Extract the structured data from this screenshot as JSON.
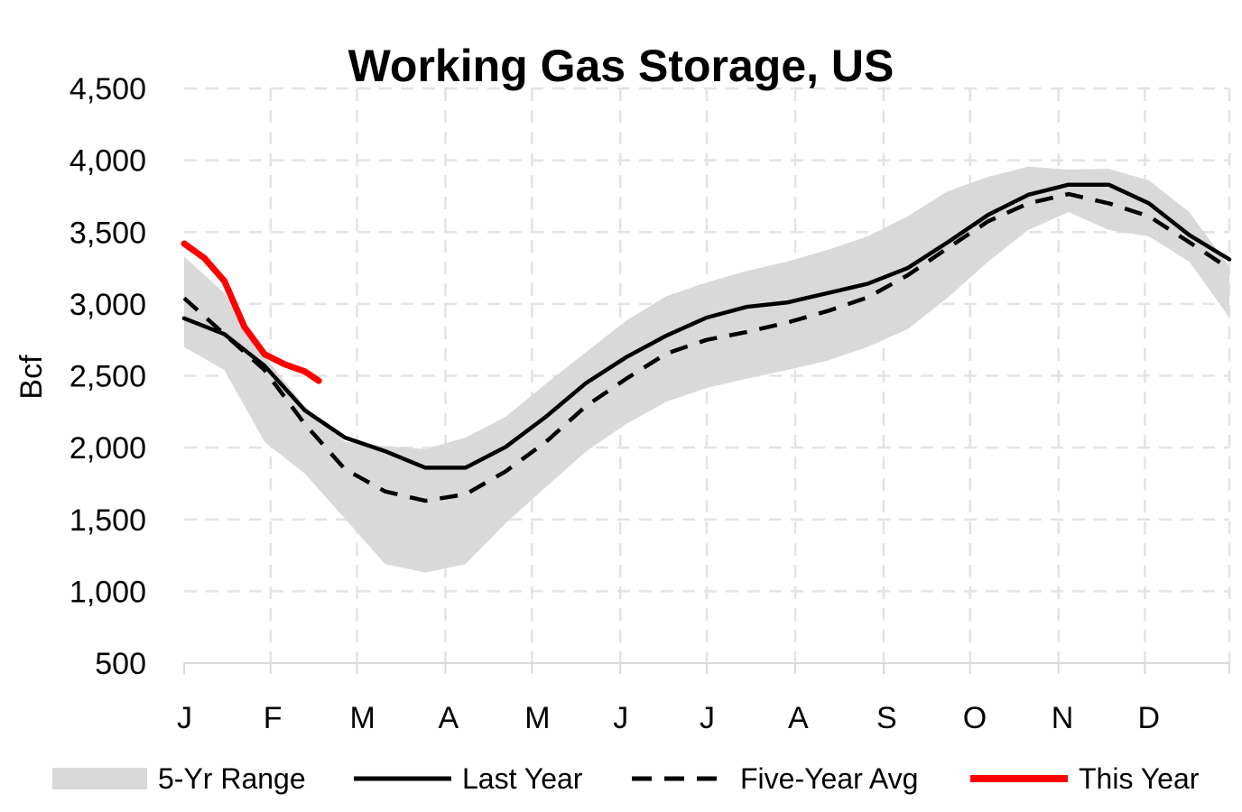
{
  "chart_data": {
    "type": "line",
    "title": "Working Gas Storage, US",
    "ylabel": "Bcf",
    "xlabel": "",
    "ylim": [
      500,
      4500
    ],
    "yticks": [
      "500",
      "1,000",
      "1,500",
      "2,000",
      "2,500",
      "3,000",
      "3,500",
      "4,000",
      "4,500"
    ],
    "ytick_values": [
      500,
      1000,
      1500,
      2000,
      2500,
      3000,
      3500,
      4000,
      4500
    ],
    "x_unit": "week of year",
    "xlim": [
      1,
      53
    ],
    "xtick_labels": [
      "J",
      "F",
      "M",
      "A",
      "M",
      "J",
      "J",
      "A",
      "S",
      "O",
      "N",
      "D"
    ],
    "xtick_weeks": [
      1,
      5.3,
      9.6,
      14,
      18.3,
      22.7,
      27,
      31.4,
      35.8,
      40.1,
      44.5,
      48.8,
      53
    ],
    "grid": true,
    "legend_position": "bottom",
    "x": [
      1,
      3,
      5,
      7,
      9,
      11,
      13,
      15,
      17,
      19,
      21,
      23,
      25,
      27,
      29,
      31,
      33,
      35,
      37,
      39,
      41,
      43,
      45,
      47,
      49,
      51,
      53
    ],
    "series": [
      {
        "name": "5-Yr Range",
        "kind": "band",
        "color": "#d9d9d9",
        "upper": [
          3330,
          3075,
          2635,
          2290,
          2040,
          2010,
          1990,
          2070,
          2215,
          2445,
          2665,
          2885,
          3055,
          3150,
          3230,
          3295,
          3375,
          3470,
          3610,
          3785,
          3885,
          3955,
          3935,
          3940,
          3860,
          3640,
          3260
        ],
        "lower": [
          2700,
          2540,
          2040,
          1820,
          1505,
          1190,
          1130,
          1190,
          1475,
          1725,
          1975,
          2165,
          2320,
          2415,
          2480,
          2540,
          2605,
          2700,
          2825,
          3045,
          3295,
          3515,
          3640,
          3515,
          3470,
          3295,
          2905
        ]
      },
      {
        "name": "Last Year",
        "kind": "solid",
        "color": "#000000",
        "values": [
          2900,
          2790,
          2570,
          2260,
          2070,
          1975,
          1860,
          1860,
          2005,
          2215,
          2450,
          2630,
          2780,
          2905,
          2980,
          3010,
          3075,
          3140,
          3250,
          3430,
          3620,
          3760,
          3830,
          3830,
          3700,
          3480,
          3310
        ]
      },
      {
        "name": "Five-Year Avg",
        "kind": "dashed",
        "color": "#000000",
        "values": [
          3040,
          2790,
          2540,
          2165,
          1850,
          1695,
          1630,
          1675,
          1835,
          2040,
          2290,
          2480,
          2655,
          2750,
          2805,
          2870,
          2950,
          3045,
          3200,
          3390,
          3575,
          3700,
          3765,
          3700,
          3610,
          3430,
          3245
        ]
      },
      {
        "name": "This Year",
        "kind": "solid",
        "color": "#ff0000",
        "x": [
          1,
          2,
          3,
          4,
          5,
          6,
          7,
          7.7
        ],
        "values": [
          3420,
          3320,
          3160,
          2840,
          2650,
          2580,
          2530,
          2465
        ]
      }
    ]
  }
}
